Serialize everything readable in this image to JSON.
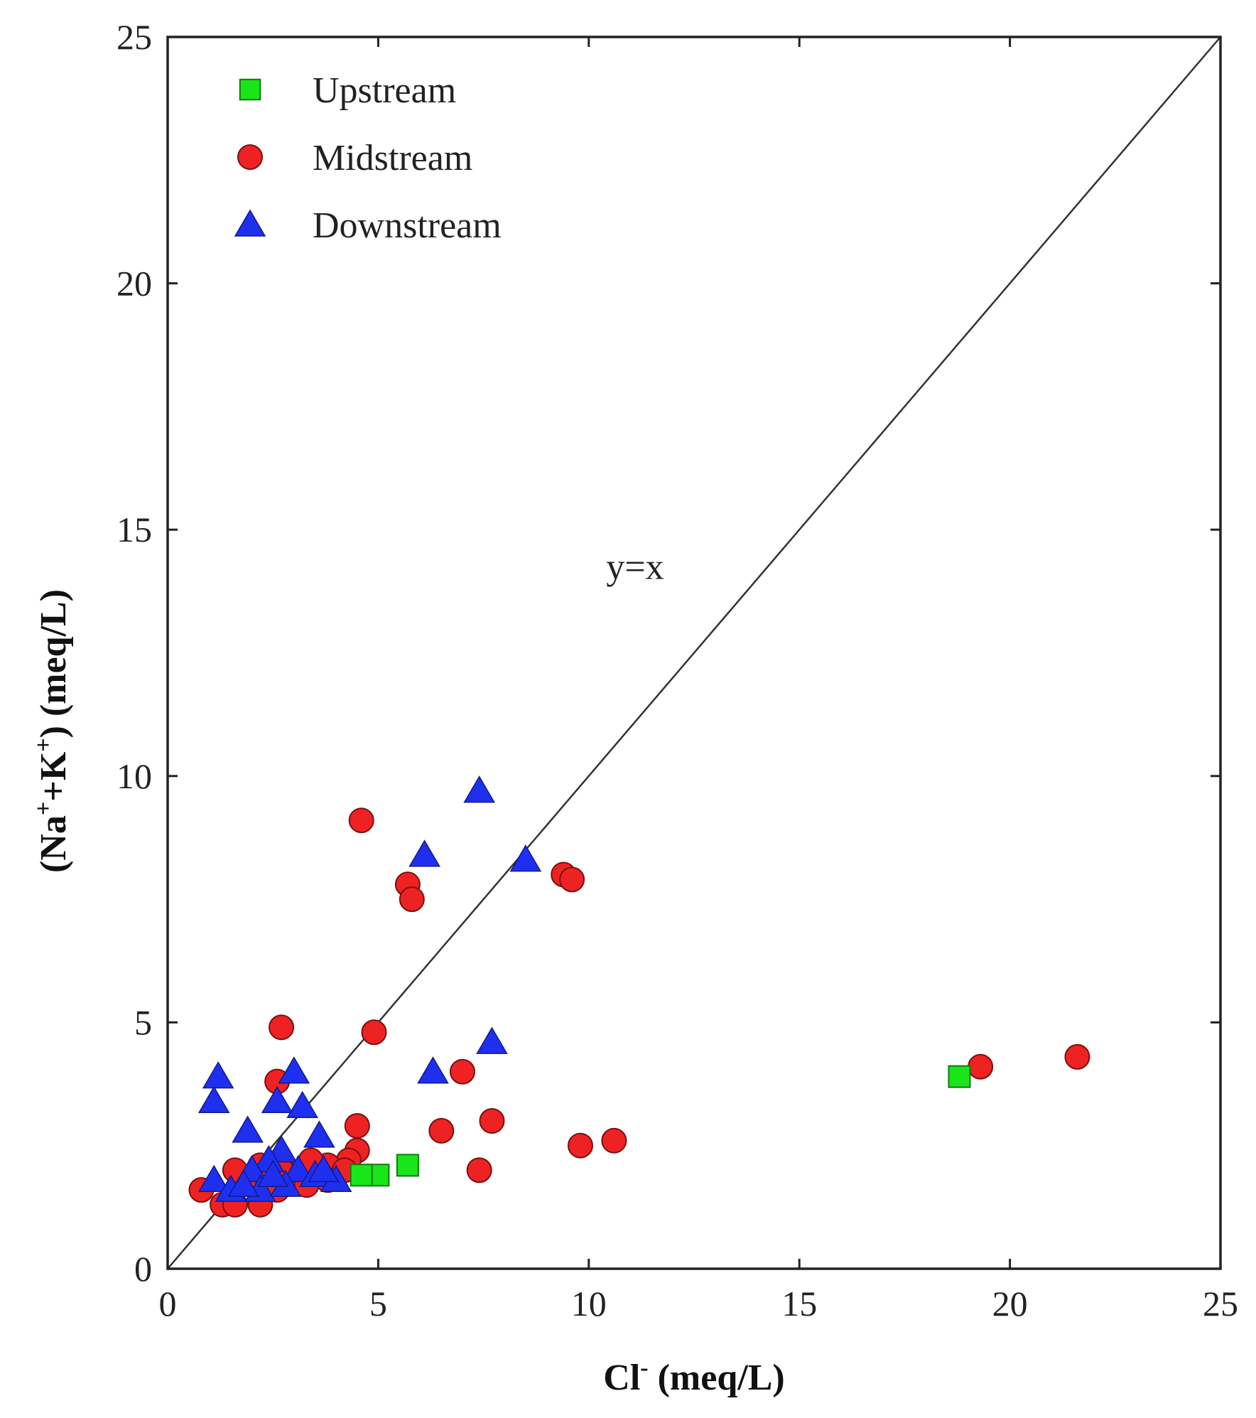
{
  "chart_data": {
    "type": "scatter",
    "title": "",
    "xlabel": {
      "main": "Cl",
      "sup": "-",
      "unit": " (meq/L)"
    },
    "ylabel": {
      "parts": [
        "(Na",
        "+",
        "+K",
        "+",
        ") (meq/L)"
      ]
    },
    "xlim": [
      0,
      25
    ],
    "ylim": [
      0,
      25
    ],
    "xticks": [
      0,
      5,
      10,
      15,
      20,
      25
    ],
    "yticks": [
      0,
      5,
      10,
      15,
      20,
      25
    ],
    "xtick_labels": [
      "0",
      "5",
      "10",
      "15",
      "20",
      "25"
    ],
    "ytick_labels": [
      "0",
      "5",
      "10",
      "15",
      "20",
      "25"
    ],
    "grid": false,
    "legend_position": "top-left",
    "reference_line": {
      "label": "y=x",
      "from": [
        0,
        0
      ],
      "to": [
        25,
        25
      ]
    },
    "series": [
      {
        "name": "Upstream",
        "marker": "square",
        "color": "#19e619",
        "points": [
          [
            18.8,
            3.9
          ],
          [
            5.7,
            2.1
          ],
          [
            5.0,
            1.9
          ],
          [
            4.6,
            1.9
          ]
        ]
      },
      {
        "name": "Midstream",
        "marker": "circle",
        "color": "#ee2222",
        "points": [
          [
            4.6,
            9.1
          ],
          [
            5.7,
            7.8
          ],
          [
            5.8,
            7.5
          ],
          [
            9.4,
            8.0
          ],
          [
            9.6,
            7.9
          ],
          [
            2.7,
            4.9
          ],
          [
            4.9,
            4.8
          ],
          [
            2.6,
            3.8
          ],
          [
            7.0,
            4.0
          ],
          [
            19.3,
            4.1
          ],
          [
            21.6,
            4.3
          ],
          [
            4.5,
            2.9
          ],
          [
            6.5,
            2.8
          ],
          [
            7.7,
            3.0
          ],
          [
            9.8,
            2.5
          ],
          [
            10.6,
            2.6
          ],
          [
            7.4,
            2.0
          ],
          [
            4.5,
            2.4
          ],
          [
            4.3,
            2.2
          ],
          [
            3.8,
            2.1
          ],
          [
            3.4,
            2.2
          ],
          [
            3.0,
            1.9
          ],
          [
            2.7,
            2.0
          ],
          [
            2.2,
            2.1
          ],
          [
            1.6,
            2.0
          ],
          [
            2.0,
            1.8
          ],
          [
            3.3,
            1.7
          ],
          [
            0.8,
            1.6
          ],
          [
            1.3,
            1.3
          ],
          [
            1.6,
            1.3
          ],
          [
            2.2,
            1.3
          ],
          [
            2.6,
            1.6
          ],
          [
            3.8,
            1.8
          ],
          [
            4.2,
            2.0
          ]
        ]
      },
      {
        "name": "Downstream",
        "marker": "triangle",
        "color": "#1f2ff0",
        "points": [
          [
            7.4,
            9.7
          ],
          [
            6.1,
            8.4
          ],
          [
            8.5,
            8.3
          ],
          [
            7.7,
            4.6
          ],
          [
            6.3,
            4.0
          ],
          [
            1.2,
            3.9
          ],
          [
            3.0,
            4.0
          ],
          [
            1.1,
            3.4
          ],
          [
            2.6,
            3.4
          ],
          [
            3.2,
            3.3
          ],
          [
            1.9,
            2.8
          ],
          [
            3.6,
            2.7
          ],
          [
            2.7,
            2.4
          ],
          [
            2.4,
            2.2
          ],
          [
            2.0,
            2.0
          ],
          [
            3.1,
            2.0
          ],
          [
            3.5,
            1.9
          ],
          [
            4.0,
            1.8
          ],
          [
            1.1,
            1.8
          ],
          [
            1.5,
            1.6
          ],
          [
            2.2,
            1.6
          ],
          [
            2.8,
            1.7
          ],
          [
            3.7,
            2.0
          ],
          [
            2.5,
            1.9
          ],
          [
            1.8,
            1.7
          ]
        ]
      }
    ]
  }
}
